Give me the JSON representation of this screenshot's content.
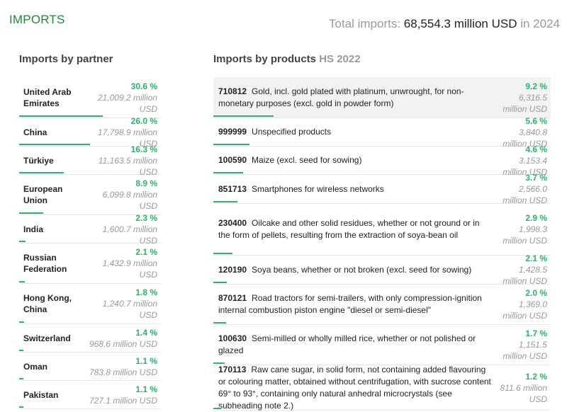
{
  "header": {
    "title": "IMPORTS",
    "total_prefix": "Total imports: ",
    "total_value": "68,554.3 million USD",
    "total_suffix": " in 2024"
  },
  "partners_section": {
    "title": "Imports by partner"
  },
  "products_section": {
    "title": "Imports by products",
    "subtitle": "HS 2022"
  },
  "partners": [
    {
      "name": "United Arab Emirates",
      "pct": "30.6 %",
      "amount": "21,009.2 million USD",
      "share": 30.6
    },
    {
      "name": "China",
      "pct": "26.0 %",
      "amount": "17,798.9 million USD",
      "share": 26.0
    },
    {
      "name": "Türkiye",
      "pct": "16.3 %",
      "amount": "11,163.5 million USD",
      "share": 16.3
    },
    {
      "name": "European Union",
      "pct": "8.9 %",
      "amount": "6,099.8 million USD",
      "share": 8.9
    },
    {
      "name": "India",
      "pct": "2.3 %",
      "amount": "1,600.7 million USD",
      "share": 2.3
    },
    {
      "name": "Russian Federation",
      "pct": "2.1 %",
      "amount": "1,432.9 million USD",
      "share": 2.1
    },
    {
      "name": "Hong Kong, China",
      "pct": "1.8 %",
      "amount": "1,240.7 million USD",
      "share": 1.8
    },
    {
      "name": "Switzerland",
      "pct": "1.4 %",
      "amount": "968.6 million USD",
      "share": 1.4
    },
    {
      "name": "Oman",
      "pct": "1.1 %",
      "amount": "783.8 million USD",
      "share": 1.1
    },
    {
      "name": "Pakistan",
      "pct": "1.1 %",
      "amount": "727.1 million USD",
      "share": 1.1
    }
  ],
  "products": [
    {
      "code": "710812",
      "desc": "Gold, incl. gold plated with platinum, unwrought, for non-monetary purposes (excl. gold in powder form)",
      "pct": "9.2 %",
      "amount": "6,316.5 million USD",
      "share": 9.2
    },
    {
      "code": "999999",
      "desc": "Unspecified products",
      "pct": "5.6 %",
      "amount": "3,840.8 million USD",
      "share": 5.6
    },
    {
      "code": "100590",
      "desc": "Maize (excl. seed for sowing)",
      "pct": "4.6 %",
      "amount": "3,153.4 million USD",
      "share": 4.6
    },
    {
      "code": "851713",
      "desc": "Smartphones for wireless networks",
      "pct": "3.7 %",
      "amount": "2,566.0 million USD",
      "share": 3.7
    },
    {
      "code": "230400",
      "desc": "Oilcake and other solid residues, whether or not ground or in the form of pellets, resulting from the extraction of soya-bean oil",
      "pct": "2.9 %",
      "amount": "1,998.3 million USD",
      "share": 2.9
    },
    {
      "code": "120190",
      "desc": "Soya beans, whether or not broken (excl. seed for sowing)",
      "pct": "2.1 %",
      "amount": "1,428.5 million USD",
      "share": 2.1
    },
    {
      "code": "870121",
      "desc": "Road tractors for semi-trailers, with only compression-ignition internal combustion piston engine \"diesel or semi-diesel\"",
      "pct": "2.0 %",
      "amount": "1,369.0 million USD",
      "share": 2.0
    },
    {
      "code": "100630",
      "desc": "Semi-milled or wholly milled rice, whether or not polished or glazed",
      "pct": "1.7 %",
      "amount": "1,151.5 million USD",
      "share": 1.7
    },
    {
      "code": "170113",
      "desc": "Raw cane sugar, in solid form, not containing added flavouring or colouring matter, obtained without centrifugation, with sucrose content 69° to 93°, containing only natural anhedral microcrystals (see subheading note 2.)",
      "pct": "1.2 %",
      "amount": "811.6 million USD",
      "share": 1.2
    }
  ]
}
